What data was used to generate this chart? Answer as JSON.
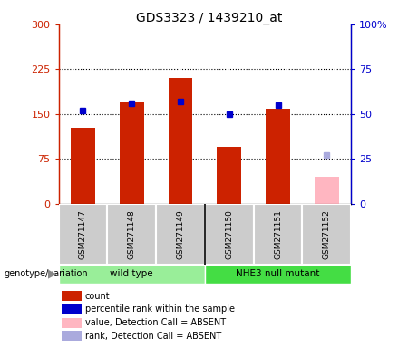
{
  "title": "GDS3323 / 1439210_at",
  "samples": [
    "GSM271147",
    "GSM271148",
    "GSM271149",
    "GSM271150",
    "GSM271151",
    "GSM271152"
  ],
  "count_values": [
    127,
    170,
    210,
    95,
    158,
    null
  ],
  "count_absent_values": [
    null,
    null,
    null,
    null,
    null,
    45
  ],
  "rank_values": [
    52,
    56,
    57,
    50,
    55,
    null
  ],
  "rank_absent_values": [
    null,
    null,
    null,
    null,
    null,
    27
  ],
  "ylim_left": [
    0,
    300
  ],
  "ylim_right": [
    0,
    100
  ],
  "yticks_left": [
    0,
    75,
    150,
    225,
    300
  ],
  "yticks_right": [
    0,
    25,
    50,
    75,
    100
  ],
  "ytick_labels_left": [
    "0",
    "75",
    "150",
    "225",
    "300"
  ],
  "ytick_labels_right": [
    "0",
    "25",
    "50",
    "75",
    "100%"
  ],
  "hlines": [
    75,
    150,
    225
  ],
  "bar_color": "#cc2200",
  "bar_absent_color": "#ffb6c1",
  "rank_color": "#0000cc",
  "rank_absent_color": "#aaaadd",
  "bar_width": 0.5,
  "left_axis_color": "#cc2200",
  "right_axis_color": "#0000cc",
  "bg_plot": "#ffffff",
  "bg_labels": "#cccccc",
  "bg_group_wt": "#99ee99",
  "bg_group_nhe": "#44dd44",
  "legend_items": [
    {
      "label": "count",
      "color": "#cc2200"
    },
    {
      "label": "percentile rank within the sample",
      "color": "#0000cc"
    },
    {
      "label": "value, Detection Call = ABSENT",
      "color": "#ffb6c1"
    },
    {
      "label": "rank, Detection Call = ABSENT",
      "color": "#aaaadd"
    }
  ],
  "right_tick_labels": [
    "0",
    "25",
    "50",
    "75",
    "100%"
  ]
}
